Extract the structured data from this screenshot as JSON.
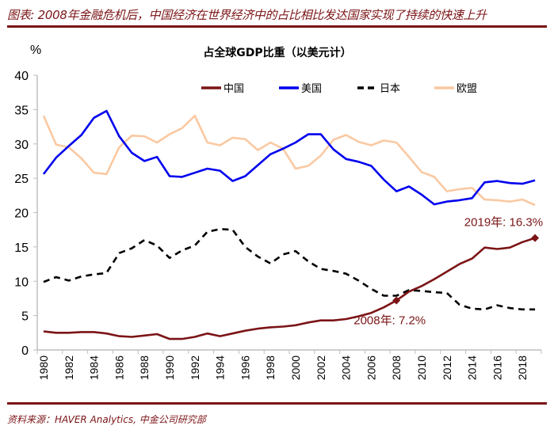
{
  "figure_title": "图表: 2008年金融危机后，中国经济在世界经济中的占比相比发达国家实现了持续的快速上升",
  "source": "资料来源：HAVER Analytics, 中金公司研究部",
  "chart_data": {
    "type": "line",
    "title": "占全球GDP比重（以美元计）",
    "ylabel": "%",
    "xlabel": "",
    "ylim": [
      0,
      40
    ],
    "yticks": [
      0,
      5,
      10,
      15,
      20,
      25,
      30,
      35,
      40
    ],
    "x": [
      1980,
      1981,
      1982,
      1983,
      1984,
      1985,
      1986,
      1987,
      1988,
      1989,
      1990,
      1991,
      1992,
      1993,
      1994,
      1995,
      1996,
      1997,
      1998,
      1999,
      2000,
      2001,
      2002,
      2003,
      2004,
      2005,
      2006,
      2007,
      2008,
      2009,
      2010,
      2011,
      2012,
      2013,
      2014,
      2015,
      2016,
      2017,
      2018,
      2019
    ],
    "xticks": [
      "1980",
      "1982",
      "1984",
      "1986",
      "1988",
      "1990",
      "1992",
      "1994",
      "1996",
      "1998",
      "2000",
      "2002",
      "2004",
      "2006",
      "2008",
      "2010",
      "2012",
      "2014",
      "2016",
      "2018"
    ],
    "grid": false,
    "legend_position": "top",
    "series": [
      {
        "name": "中国",
        "color": "#7b1416",
        "style": "solid",
        "values": [
          2.7,
          2.5,
          2.5,
          2.6,
          2.6,
          2.4,
          2.0,
          1.9,
          2.1,
          2.3,
          1.6,
          1.6,
          1.9,
          2.4,
          2.0,
          2.4,
          2.8,
          3.1,
          3.3,
          3.4,
          3.6,
          4.0,
          4.3,
          4.3,
          4.5,
          4.9,
          5.4,
          6.2,
          7.2,
          8.5,
          9.3,
          10.3,
          11.4,
          12.5,
          13.3,
          14.9,
          14.7,
          14.9,
          15.7,
          16.3
        ]
      },
      {
        "name": "美国",
        "color": "#0000ee",
        "style": "solid",
        "values": [
          25.6,
          28.0,
          29.7,
          31.3,
          33.8,
          34.8,
          31.1,
          28.7,
          27.5,
          28.1,
          25.3,
          25.2,
          25.8,
          26.4,
          26.1,
          24.6,
          25.3,
          26.9,
          28.5,
          29.3,
          30.2,
          31.4,
          31.4,
          29.2,
          27.8,
          27.4,
          26.8,
          24.8,
          23.1,
          23.8,
          22.6,
          21.2,
          21.6,
          21.8,
          22.1,
          24.4,
          24.6,
          24.3,
          24.2,
          24.7
        ]
      },
      {
        "name": "日本",
        "color": "#000000",
        "style": "dashed",
        "values": [
          9.9,
          10.6,
          10.1,
          10.7,
          11.0,
          11.2,
          14.1,
          14.8,
          16.0,
          15.2,
          13.4,
          14.5,
          15.2,
          17.2,
          17.6,
          17.5,
          15.0,
          13.6,
          12.6,
          13.9,
          14.4,
          12.9,
          11.8,
          11.5,
          11.1,
          10.1,
          8.9,
          7.9,
          7.9,
          8.7,
          8.6,
          8.4,
          8.3,
          6.6,
          6.0,
          5.9,
          6.5,
          6.1,
          5.9,
          5.9
        ]
      },
      {
        "name": "欧盟",
        "color": "#fac9a2",
        "style": "solid",
        "values": [
          34.1,
          29.9,
          29.5,
          27.9,
          25.8,
          25.6,
          29.5,
          31.2,
          31.1,
          30.2,
          31.4,
          32.3,
          34.1,
          30.2,
          29.8,
          30.9,
          30.7,
          29.1,
          30.2,
          29.3,
          26.4,
          26.8,
          28.3,
          30.6,
          31.3,
          30.3,
          29.8,
          30.5,
          30.2,
          28.1,
          25.9,
          25.2,
          23.1,
          23.4,
          23.6,
          21.9,
          21.8,
          21.6,
          21.9,
          21.1
        ]
      }
    ],
    "annotations": [
      {
        "text": "2008年: 7.2%",
        "series": "中国",
        "x": 2008,
        "y": 7.2
      },
      {
        "text": "2019年: 16.3%",
        "series": "中国",
        "x": 2019,
        "y": 16.3
      }
    ]
  }
}
